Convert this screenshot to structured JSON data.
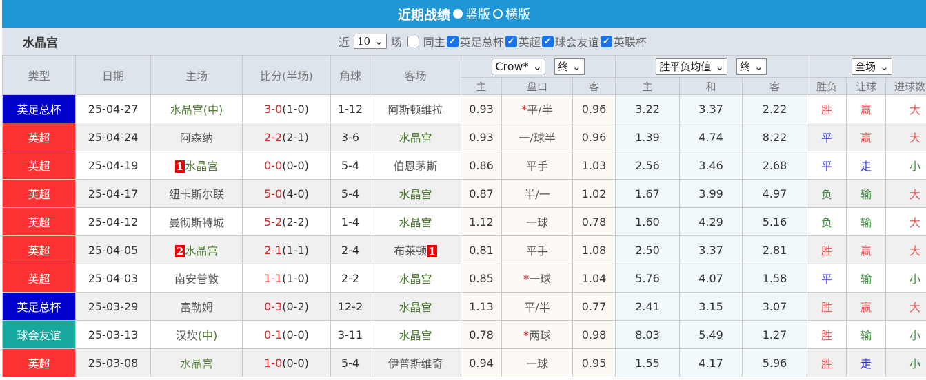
{
  "header": {
    "title": "近期战绩",
    "view_options": [
      {
        "label": "竖版",
        "selected": true
      },
      {
        "label": "横版",
        "selected": false
      }
    ]
  },
  "filter": {
    "team": "水晶宫",
    "recent_prefix": "近",
    "recent_count": "10",
    "recent_suffix": "场",
    "same_home_label": "同主",
    "same_home_checked": false,
    "competitions": [
      {
        "label": "英足总杯",
        "checked": true
      },
      {
        "label": "英超",
        "checked": true
      },
      {
        "label": "球会友谊",
        "checked": true
      },
      {
        "label": "英联杯",
        "checked": true
      }
    ]
  },
  "columns": {
    "type": "类型",
    "date": "日期",
    "home": "主场",
    "score": "比分(半场)",
    "corners": "角球",
    "away": "客场",
    "handicap_company": "Crow*",
    "handicap_time": "终",
    "odds_type": "胜平负均值",
    "odds_time": "终",
    "period": "全场",
    "sub": {
      "h_home": "主",
      "h_line": "盘口",
      "h_away": "客",
      "o_home": "主",
      "o_draw": "和",
      "o_away": "客",
      "result": "胜负",
      "handicap_result": "让球",
      "goals": "进球数"
    }
  },
  "colors": {
    "英足总杯": "#0000cc",
    "英超": "#ff3333",
    "球会友谊": "#16a89e",
    "accent": "#1e96d6"
  },
  "rows": [
    {
      "type": "英足总杯",
      "date": "25-04-27",
      "home": "水晶宫",
      "home_suffix": "(中)",
      "home_badge": "",
      "home_is_team": true,
      "score": "3-0",
      "half": "(1-0)",
      "corners": "1-12",
      "away": "阿斯顿维拉",
      "away_badge": "",
      "away_is_team": false,
      "h_home": "0.93",
      "h_star": "*",
      "h_line": "平/半",
      "h_away": "0.96",
      "o_home": "3.22",
      "o_draw": "3.37",
      "o_away": "2.22",
      "result": "胜",
      "hres": "赢",
      "goals": "大"
    },
    {
      "type": "英超",
      "date": "25-04-24",
      "home": "阿森纳",
      "home_suffix": "",
      "home_badge": "",
      "home_is_team": false,
      "score": "2-2",
      "half": "(2-1)",
      "corners": "3-6",
      "away": "水晶宫",
      "away_badge": "",
      "away_is_team": true,
      "h_home": "0.93",
      "h_star": "",
      "h_line": "一/球半",
      "h_away": "0.96",
      "o_home": "1.39",
      "o_draw": "4.74",
      "o_away": "8.22",
      "result": "平",
      "hres": "赢",
      "goals": "大"
    },
    {
      "type": "英超",
      "date": "25-04-19",
      "home": "水晶宫",
      "home_suffix": "",
      "home_badge": "1",
      "home_is_team": true,
      "score": "0-0",
      "half": "(0-0)",
      "corners": "5-4",
      "away": "伯恩茅斯",
      "away_badge": "",
      "away_is_team": false,
      "h_home": "0.86",
      "h_star": "",
      "h_line": "平手",
      "h_away": "1.03",
      "o_home": "2.56",
      "o_draw": "3.46",
      "o_away": "2.68",
      "result": "平",
      "hres": "走",
      "goals": "小"
    },
    {
      "type": "英超",
      "date": "25-04-17",
      "home": "纽卡斯尔联",
      "home_suffix": "",
      "home_badge": "",
      "home_is_team": false,
      "score": "5-0",
      "half": "(4-0)",
      "corners": "5-4",
      "away": "水晶宫",
      "away_badge": "",
      "away_is_team": true,
      "h_home": "0.87",
      "h_star": "",
      "h_line": "半/一",
      "h_away": "1.02",
      "o_home": "1.67",
      "o_draw": "3.99",
      "o_away": "4.97",
      "result": "负",
      "hres": "输",
      "goals": "大"
    },
    {
      "type": "英超",
      "date": "25-04-12",
      "home": "曼彻斯特城",
      "home_suffix": "",
      "home_badge": "",
      "home_is_team": false,
      "score": "5-2",
      "half": "(2-2)",
      "corners": "1-4",
      "away": "水晶宫",
      "away_badge": "",
      "away_is_team": true,
      "h_home": "1.12",
      "h_star": "",
      "h_line": "一球",
      "h_away": "0.78",
      "o_home": "1.60",
      "o_draw": "4.29",
      "o_away": "5.16",
      "result": "负",
      "hres": "输",
      "goals": "大"
    },
    {
      "type": "英超",
      "date": "25-04-05",
      "home": "水晶宫",
      "home_suffix": "",
      "home_badge": "2",
      "home_is_team": true,
      "score": "2-1",
      "half": "(1-1)",
      "corners": "2-4",
      "away": "布莱顿",
      "away_badge": "1",
      "away_is_team": false,
      "h_home": "0.81",
      "h_star": "",
      "h_line": "平手",
      "h_away": "1.08",
      "o_home": "2.50",
      "o_draw": "3.37",
      "o_away": "2.81",
      "result": "胜",
      "hres": "赢",
      "goals": "大"
    },
    {
      "type": "英超",
      "date": "25-04-03",
      "home": "南安普敦",
      "home_suffix": "",
      "home_badge": "",
      "home_is_team": false,
      "score": "1-1",
      "half": "(1-0)",
      "corners": "2-2",
      "away": "水晶宫",
      "away_badge": "",
      "away_is_team": true,
      "h_home": "0.85",
      "h_star": "*",
      "h_line": "一球",
      "h_away": "1.04",
      "o_home": "5.76",
      "o_draw": "4.07",
      "o_away": "1.58",
      "result": "平",
      "hres": "输",
      "goals": "小"
    },
    {
      "type": "英足总杯",
      "date": "25-03-29",
      "home": "富勒姆",
      "home_suffix": "",
      "home_badge": "",
      "home_is_team": false,
      "score": "0-3",
      "half": "(0-2)",
      "corners": "12-2",
      "away": "水晶宫",
      "away_badge": "",
      "away_is_team": true,
      "h_home": "1.13",
      "h_star": "",
      "h_line": "平/半",
      "h_away": "0.77",
      "o_home": "2.41",
      "o_draw": "3.15",
      "o_away": "3.07",
      "result": "胜",
      "hres": "赢",
      "goals": "大"
    },
    {
      "type": "球会友谊",
      "date": "25-03-13",
      "home": "汉坎",
      "home_suffix": "(中)",
      "home_badge": "",
      "home_is_team": false,
      "score": "0-1",
      "half": "(0-0)",
      "corners": "3-11",
      "away": "水晶宫",
      "away_badge": "",
      "away_is_team": true,
      "h_home": "0.78",
      "h_star": "*",
      "h_line": "两球",
      "h_away": "0.98",
      "o_home": "8.03",
      "o_draw": "5.49",
      "o_away": "1.27",
      "result": "胜",
      "hres": "输",
      "goals": "小"
    },
    {
      "type": "英超",
      "date": "25-03-08",
      "home": "水晶宫",
      "home_suffix": "",
      "home_badge": "",
      "home_is_team": true,
      "score": "1-0",
      "half": "(0-0)",
      "corners": "5-4",
      "away": "伊普斯维奇",
      "away_badge": "",
      "away_is_team": false,
      "h_home": "0.94",
      "h_star": "",
      "h_line": "一球",
      "h_away": "0.95",
      "o_home": "1.55",
      "o_draw": "4.17",
      "o_away": "5.96",
      "result": "胜",
      "hres": "走",
      "goals": "小"
    }
  ]
}
